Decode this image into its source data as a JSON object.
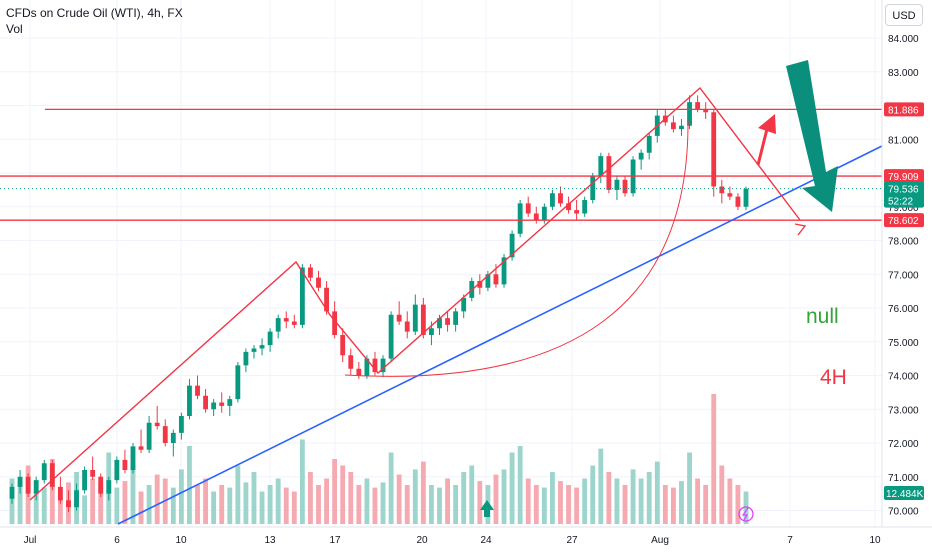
{
  "header": {
    "title": "CFDs on Crude Oil (WTI), 4h, FX",
    "volume_label": "Vol",
    "currency_button": "USD"
  },
  "chart_data": {
    "type": "candlestick",
    "symbol": "CFDs on Crude Oil (WTI)",
    "interval": "4h",
    "exchange": "FX",
    "y_axis": {
      "ticks": [
        "84.000",
        "83.000",
        "82.000",
        "81.000",
        "80.000",
        "79.000",
        "78.000",
        "77.000",
        "76.000",
        "75.000",
        "74.000",
        "73.000",
        "72.000",
        "71.000",
        "70.000"
      ],
      "range": [
        69.95,
        84.55
      ]
    },
    "x_axis": {
      "ticks": [
        "Jul",
        "6",
        "10",
        "13",
        "17",
        "20",
        "24",
        "27",
        "Aug",
        "7",
        "10"
      ]
    },
    "price_labels": [
      {
        "value": 81.886,
        "text": "81.886",
        "color": "#f23645"
      },
      {
        "value": 79.909,
        "text": "79.909",
        "color": "#f23645"
      },
      {
        "value": 79.536,
        "text": "79.536",
        "sub": "52:22",
        "color": "#089981"
      },
      {
        "value": 78.602,
        "text": "78.602",
        "color": "#f23645"
      }
    ],
    "volume_label": {
      "text": "12.484K",
      "color": "#089981"
    },
    "horizontal_levels": [
      81.886,
      79.909,
      78.602
    ],
    "current_price": 79.536,
    "candles": [
      [
        70.35,
        70.8,
        70.2,
        70.7
      ],
      [
        70.7,
        71.2,
        70.5,
        71.0
      ],
      [
        71.0,
        71.1,
        70.4,
        70.5
      ],
      [
        70.5,
        71.0,
        70.3,
        70.9
      ],
      [
        70.9,
        71.5,
        70.8,
        71.4
      ],
      [
        71.4,
        71.5,
        70.6,
        70.7
      ],
      [
        70.7,
        71.0,
        70.2,
        70.3
      ],
      [
        70.3,
        70.6,
        69.95,
        70.1
      ],
      [
        70.1,
        70.8,
        70.0,
        70.6
      ],
      [
        70.6,
        71.3,
        70.5,
        71.2
      ],
      [
        71.2,
        71.6,
        70.9,
        71.0
      ],
      [
        71.0,
        71.1,
        70.4,
        70.5
      ],
      [
        70.5,
        71.0,
        70.3,
        70.9
      ],
      [
        70.9,
        71.6,
        70.8,
        71.5
      ],
      [
        71.5,
        71.8,
        71.1,
        71.2
      ],
      [
        71.2,
        72.0,
        71.1,
        71.9
      ],
      [
        71.9,
        72.4,
        71.7,
        71.8
      ],
      [
        71.8,
        72.8,
        71.7,
        72.6
      ],
      [
        72.6,
        73.1,
        72.4,
        72.5
      ],
      [
        72.5,
        72.7,
        71.9,
        72.0
      ],
      [
        72.0,
        72.4,
        71.6,
        72.3
      ],
      [
        72.3,
        72.9,
        72.1,
        72.8
      ],
      [
        72.8,
        73.9,
        72.7,
        73.7
      ],
      [
        73.7,
        74.0,
        73.3,
        73.4
      ],
      [
        73.4,
        73.6,
        72.9,
        73.0
      ],
      [
        73.0,
        73.3,
        72.8,
        73.2
      ],
      [
        73.2,
        73.5,
        72.9,
        73.1
      ],
      [
        73.1,
        73.4,
        72.8,
        73.3
      ],
      [
        73.3,
        74.4,
        73.2,
        74.3
      ],
      [
        74.3,
        74.8,
        74.1,
        74.7
      ],
      [
        74.7,
        74.9,
        74.5,
        74.8
      ],
      [
        74.8,
        75.1,
        74.6,
        74.9
      ],
      [
        74.9,
        75.4,
        74.7,
        75.3
      ],
      [
        75.3,
        75.8,
        75.1,
        75.7
      ],
      [
        75.7,
        75.9,
        75.4,
        75.6
      ],
      [
        75.6,
        75.8,
        75.4,
        75.5
      ],
      [
        75.5,
        77.3,
        75.4,
        77.2
      ],
      [
        77.2,
        77.3,
        76.8,
        76.9
      ],
      [
        76.9,
        77.1,
        76.5,
        76.6
      ],
      [
        76.6,
        76.8,
        75.8,
        75.9
      ],
      [
        75.9,
        76.2,
        75.1,
        75.2
      ],
      [
        75.2,
        75.4,
        74.4,
        74.6
      ],
      [
        74.6,
        74.8,
        74.0,
        74.2
      ],
      [
        74.2,
        74.4,
        73.9,
        74.0
      ],
      [
        74.0,
        74.6,
        73.9,
        74.5
      ],
      [
        74.5,
        74.7,
        74.0,
        74.1
      ],
      [
        74.1,
        74.6,
        73.95,
        74.5
      ],
      [
        74.5,
        75.9,
        74.4,
        75.8
      ],
      [
        75.8,
        76.2,
        75.5,
        75.6
      ],
      [
        75.6,
        75.9,
        75.1,
        75.3
      ],
      [
        75.3,
        76.4,
        75.2,
        76.1
      ],
      [
        76.1,
        76.3,
        75.1,
        75.2
      ],
      [
        75.2,
        75.6,
        74.9,
        75.4
      ],
      [
        75.4,
        75.8,
        75.2,
        75.7
      ],
      [
        75.7,
        75.9,
        75.3,
        75.5
      ],
      [
        75.5,
        76.0,
        75.3,
        75.9
      ],
      [
        75.9,
        76.4,
        75.7,
        76.3
      ],
      [
        76.3,
        76.9,
        76.2,
        76.8
      ],
      [
        76.8,
        77.0,
        76.4,
        76.6
      ],
      [
        76.6,
        77.1,
        76.5,
        77.0
      ],
      [
        77.0,
        77.3,
        76.6,
        76.7
      ],
      [
        76.7,
        77.6,
        76.6,
        77.5
      ],
      [
        77.5,
        78.3,
        77.4,
        78.2
      ],
      [
        78.2,
        79.2,
        78.1,
        79.1
      ],
      [
        79.1,
        79.3,
        78.7,
        78.8
      ],
      [
        78.8,
        79.0,
        78.5,
        78.6
      ],
      [
        78.6,
        79.1,
        78.5,
        79.0
      ],
      [
        79.0,
        79.5,
        78.9,
        79.4
      ],
      [
        79.4,
        79.6,
        79.0,
        79.1
      ],
      [
        79.1,
        79.3,
        78.8,
        78.9
      ],
      [
        78.9,
        79.2,
        78.6,
        78.8
      ],
      [
        78.8,
        79.3,
        78.7,
        79.2
      ],
      [
        79.2,
        80.0,
        79.1,
        79.9
      ],
      [
        79.9,
        80.6,
        79.7,
        80.5
      ],
      [
        80.5,
        80.6,
        79.4,
        79.5
      ],
      [
        79.5,
        79.9,
        79.2,
        79.8
      ],
      [
        79.8,
        79.9,
        79.3,
        79.4
      ],
      [
        79.4,
        80.5,
        79.3,
        80.4
      ],
      [
        80.4,
        80.7,
        80.1,
        80.6
      ],
      [
        80.6,
        81.2,
        80.4,
        81.1
      ],
      [
        81.1,
        81.9,
        80.9,
        81.7
      ],
      [
        81.7,
        81.9,
        81.4,
        81.5
      ],
      [
        81.5,
        81.7,
        81.2,
        81.3
      ],
      [
        81.3,
        81.6,
        81.1,
        81.4
      ],
      [
        81.4,
        82.3,
        81.3,
        82.1
      ],
      [
        82.1,
        82.3,
        81.8,
        81.9
      ],
      [
        81.9,
        82.1,
        81.6,
        81.8
      ],
      [
        81.8,
        81.9,
        79.3,
        79.6
      ],
      [
        79.6,
        79.8,
        79.1,
        79.4
      ],
      [
        79.4,
        79.6,
        79.2,
        79.3
      ],
      [
        79.3,
        79.4,
        78.9,
        79.0
      ],
      [
        79.0,
        79.6,
        78.9,
        79.536
      ]
    ],
    "volumes": [
      0.35,
      0.3,
      0.45,
      0.25,
      0.28,
      0.5,
      0.2,
      0.32,
      0.4,
      0.22,
      0.35,
      0.3,
      0.55,
      0.28,
      0.33,
      0.45,
      0.25,
      0.3,
      0.38,
      0.35,
      0.28,
      0.42,
      0.6,
      0.3,
      0.35,
      0.25,
      0.3,
      0.28,
      0.45,
      0.32,
      0.4,
      0.25,
      0.3,
      0.35,
      0.28,
      0.25,
      0.65,
      0.4,
      0.3,
      0.35,
      0.5,
      0.45,
      0.4,
      0.3,
      0.35,
      0.28,
      0.32,
      0.55,
      0.38,
      0.3,
      0.42,
      0.48,
      0.3,
      0.28,
      0.35,
      0.3,
      0.4,
      0.45,
      0.33,
      0.3,
      0.38,
      0.42,
      0.55,
      0.6,
      0.35,
      0.3,
      0.28,
      0.4,
      0.33,
      0.3,
      0.28,
      0.35,
      0.45,
      0.58,
      0.4,
      0.35,
      0.3,
      0.42,
      0.35,
      0.4,
      0.48,
      0.3,
      0.28,
      0.33,
      0.55,
      0.35,
      0.3,
      1.0,
      0.45,
      0.35,
      0.3,
      0.25
    ],
    "colors": {
      "up": "#089981",
      "down": "#f23645",
      "vol_up": "#9dd5cd",
      "vol_down": "#f5a9b0",
      "level": "#f23645",
      "trend": "#2962ff",
      "pattern": "#f23645",
      "arrow_green": "#0a8f7c",
      "grid": "#f0f3fa",
      "axis_text": "#131722"
    },
    "annotations": [
      {
        "text": "null",
        "color": "#33a33a"
      },
      {
        "text": "4H",
        "color": "#f23645"
      }
    ]
  }
}
